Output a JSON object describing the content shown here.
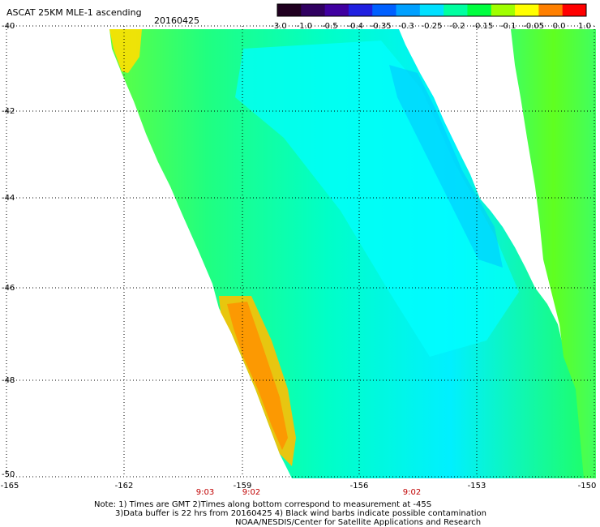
{
  "header": {
    "title": "ASCAT 25KM MLE-1 ascending",
    "date": "20160425"
  },
  "colorbar": {
    "ticks": [
      "-3.0",
      "-1.0",
      "-0.5",
      "-0.4",
      "-0.35",
      "-0.3",
      "-0.25",
      "-0.2",
      "-0.15",
      "-0.1",
      "-0.05",
      "0.0",
      "1.0"
    ],
    "colors": [
      "#200020",
      "#300060",
      "#4000a0",
      "#2020e0",
      "#0060ff",
      "#00a0ff",
      "#00e0ff",
      "#00ffa0",
      "#00ff40",
      "#a0ff00",
      "#ffff00",
      "#ff8000",
      "#ff0000"
    ]
  },
  "axes": {
    "lat_labels": [
      "-40",
      "-42",
      "-44",
      "-46",
      "-48",
      "-50"
    ],
    "lon_labels": [
      "-165",
      "-162",
      "-159",
      "-156",
      "-153",
      "-150"
    ]
  },
  "times": [
    "9:03",
    "9:02",
    "9:02"
  ],
  "notes": {
    "line1": "Note: 1) Times are GMT 2)Times along bottom correspond to measurement at -45S",
    "line2": "3)Data buffer is 22 hrs from 20160425 4) Black wind barbs indicate possible contamination",
    "line3": "NOAA/NESDIS/Center for Satellite Applications and Research"
  }
}
